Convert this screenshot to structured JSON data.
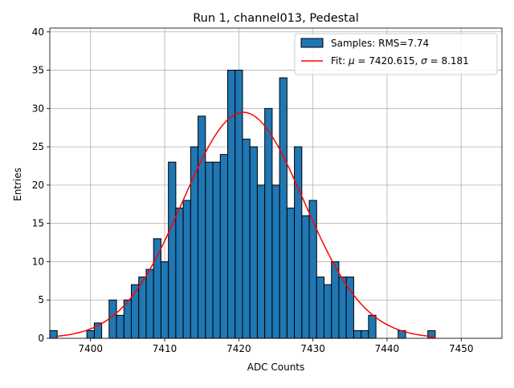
{
  "chart_data": {
    "type": "bar",
    "title": "Run 1, channel013, Pedestal",
    "xlabel": "ADC Counts",
    "ylabel": "Entries",
    "xlim": [
      7394.5,
      7455.5
    ],
    "ylim": [
      0,
      40.5
    ],
    "xticks": [
      7400,
      7410,
      7420,
      7430,
      7440,
      7450
    ],
    "yticks": [
      0,
      5,
      10,
      15,
      20,
      25,
      30,
      35,
      40
    ],
    "grid": true,
    "bin_width": 1.0,
    "bins": [
      {
        "x": 7395,
        "y": 1
      },
      {
        "x": 7400,
        "y": 1
      },
      {
        "x": 7401,
        "y": 2
      },
      {
        "x": 7403,
        "y": 5
      },
      {
        "x": 7404,
        "y": 3
      },
      {
        "x": 7405,
        "y": 5
      },
      {
        "x": 7406,
        "y": 7
      },
      {
        "x": 7407,
        "y": 8
      },
      {
        "x": 7408,
        "y": 9
      },
      {
        "x": 7409,
        "y": 13
      },
      {
        "x": 7410,
        "y": 10
      },
      {
        "x": 7411,
        "y": 23
      },
      {
        "x": 7412,
        "y": 17
      },
      {
        "x": 7413,
        "y": 18
      },
      {
        "x": 7414,
        "y": 25
      },
      {
        "x": 7415,
        "y": 29
      },
      {
        "x": 7416,
        "y": 23
      },
      {
        "x": 7417,
        "y": 23
      },
      {
        "x": 7418,
        "y": 24
      },
      {
        "x": 7419,
        "y": 35
      },
      {
        "x": 7420,
        "y": 35
      },
      {
        "x": 7421,
        "y": 26
      },
      {
        "x": 7422,
        "y": 25
      },
      {
        "x": 7423,
        "y": 20
      },
      {
        "x": 7424,
        "y": 30
      },
      {
        "x": 7425,
        "y": 20
      },
      {
        "x": 7426,
        "y": 34
      },
      {
        "x": 7427,
        "y": 17
      },
      {
        "x": 7428,
        "y": 25
      },
      {
        "x": 7429,
        "y": 16
      },
      {
        "x": 7430,
        "y": 18
      },
      {
        "x": 7431,
        "y": 8
      },
      {
        "x": 7432,
        "y": 7
      },
      {
        "x": 7433,
        "y": 10
      },
      {
        "x": 7434,
        "y": 8
      },
      {
        "x": 7435,
        "y": 8
      },
      {
        "x": 7436,
        "y": 1
      },
      {
        "x": 7437,
        "y": 1
      },
      {
        "x": 7438,
        "y": 3
      },
      {
        "x": 7442,
        "y": 1
      },
      {
        "x": 7446,
        "y": 1
      }
    ],
    "fit": {
      "type": "gaussian",
      "mu": 7420.615,
      "sigma": 8.181,
      "amplitude": 29.5,
      "x_range": [
        7395.5,
        7446.5
      ]
    },
    "series": [
      {
        "name": "Samples: RMS=7.74",
        "kind": "histogram",
        "color": "#1f77b4"
      },
      {
        "name": "Fit: μ = 7420.615, σ = 8.181",
        "kind": "line",
        "color": "#ff0000"
      }
    ],
    "legend": {
      "position": "top-right",
      "samples_label": "Samples: RMS=7.74",
      "fit_prefix": "Fit: ",
      "fit_mu_symbol": "μ",
      "fit_mu_text": " = 7420.615, ",
      "fit_sigma_symbol": "σ",
      "fit_sigma_text": " = 8.181"
    },
    "colors": {
      "bar_fill": "#1f77b4",
      "bar_edge": "#000000",
      "fit_line": "#ff0000",
      "grid": "#b0b0b0"
    }
  }
}
